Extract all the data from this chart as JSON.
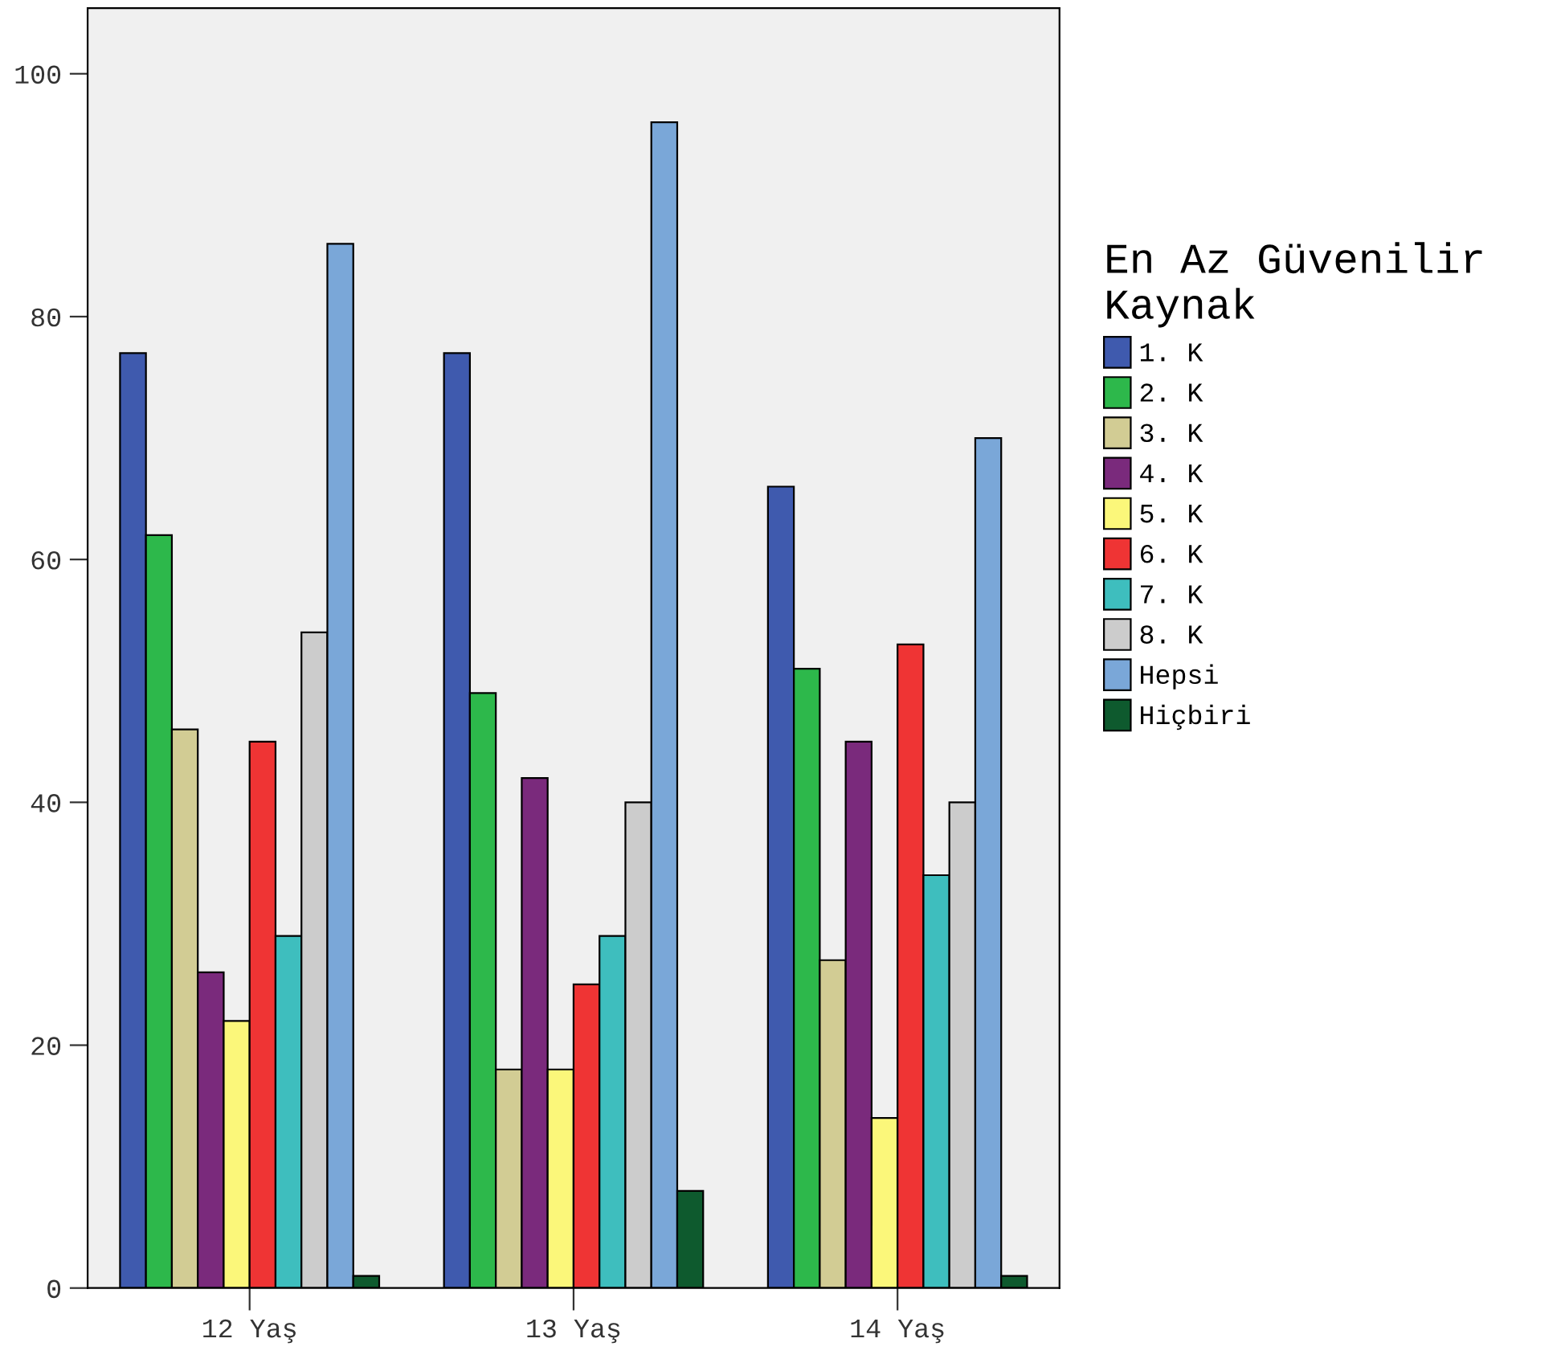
{
  "chart_data": {
    "type": "bar",
    "categories": [
      "12 Yaş",
      "13 Yaş",
      "14 Yaş"
    ],
    "series": [
      {
        "name": "1. K",
        "color": "#3f5aae",
        "values": [
          77,
          77,
          66
        ]
      },
      {
        "name": "2. K",
        "color": "#2db84b",
        "values": [
          62,
          49,
          51
        ]
      },
      {
        "name": "3. K",
        "color": "#d2cc94",
        "values": [
          46,
          18,
          27
        ]
      },
      {
        "name": "4. K",
        "color": "#7a2a7c",
        "values": [
          26,
          42,
          45
        ]
      },
      {
        "name": "5. K",
        "color": "#fbf77a",
        "values": [
          22,
          18,
          14
        ]
      },
      {
        "name": "6. K",
        "color": "#ef3434",
        "values": [
          45,
          25,
          53
        ]
      },
      {
        "name": "7. K",
        "color": "#3ebebe",
        "values": [
          29,
          29,
          34
        ]
      },
      {
        "name": "8. K",
        "color": "#cccccc",
        "values": [
          54,
          40,
          40
        ]
      },
      {
        "name": "Hepsi",
        "color": "#7aa7d8",
        "values": [
          86,
          96,
          70
        ]
      },
      {
        "name": "Hiçbiri",
        "color": "#0e5a2e",
        "values": [
          1,
          8,
          1
        ]
      }
    ],
    "legend_title": "En Az Güvenilir Kaynak",
    "legend": "right",
    "ylim": [
      0,
      105.4
    ],
    "yticks": [
      0,
      20,
      40,
      60,
      80,
      100
    ],
    "grid": false
  }
}
